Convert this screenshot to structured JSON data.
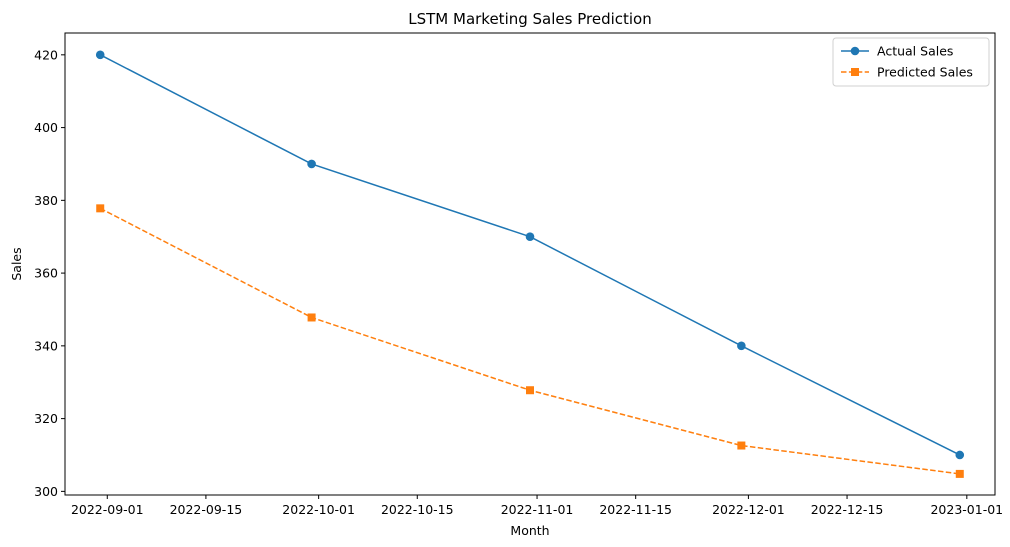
{
  "chart_data": {
    "type": "line",
    "title": "LSTM Marketing Sales Prediction",
    "xlabel": "Month",
    "ylabel": "Sales",
    "x": [
      "2022-08-31",
      "2022-09-30",
      "2022-10-31",
      "2022-11-30",
      "2022-12-31"
    ],
    "series": [
      {
        "name": "Actual Sales",
        "values": [
          420,
          390,
          370,
          340,
          310
        ],
        "color": "#1f77b4",
        "marker": "circle",
        "line_style": "solid"
      },
      {
        "name": "Predicted Sales",
        "values": [
          377.8,
          347.8,
          327.8,
          312.6,
          304.8
        ],
        "color": "#ff7f0e",
        "marker": "square",
        "line_style": "dashed"
      }
    ],
    "x_ticks": [
      "2022-09-01",
      "2022-09-15",
      "2022-10-01",
      "2022-10-15",
      "2022-11-01",
      "2022-11-15",
      "2022-12-01",
      "2022-12-15",
      "2023-01-01"
    ],
    "y_ticks": [
      300,
      320,
      340,
      360,
      380,
      400,
      420
    ],
    "xlim": [
      "2022-08-26",
      "2023-01-05"
    ],
    "ylim": [
      299,
      426
    ],
    "grid": false,
    "legend_position": "top-right"
  }
}
